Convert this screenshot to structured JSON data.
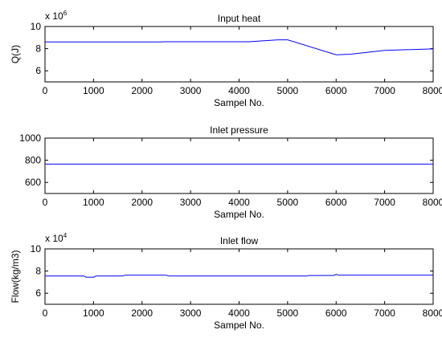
{
  "chart_data": [
    {
      "type": "line",
      "title": "Input heat",
      "xlabel": "Sampel No.",
      "ylabel": "Q(J)",
      "exponent_label": {
        "base": "x 10",
        "exp": "6"
      },
      "xlim": [
        0,
        8000
      ],
      "ylim": [
        5,
        10
      ],
      "xticks": [
        0,
        1000,
        2000,
        3000,
        4000,
        5000,
        6000,
        7000,
        8000
      ],
      "yticks": [
        6,
        8,
        10
      ],
      "grid": false,
      "series": [
        {
          "color": "#0000ff",
          "x": [
            0,
            2400,
            2450,
            4200,
            4800,
            5000,
            6000,
            6300,
            7000,
            8000
          ],
          "y": [
            8.6,
            8.6,
            8.62,
            8.62,
            8.8,
            8.8,
            7.45,
            7.5,
            7.85,
            7.98
          ]
        }
      ]
    },
    {
      "type": "line",
      "title": "Inlet pressure",
      "xlabel": "Sampel No.",
      "ylabel": "",
      "xlim": [
        0,
        8000
      ],
      "ylim": [
        500,
        1000
      ],
      "xticks": [
        0,
        1000,
        2000,
        3000,
        4000,
        5000,
        6000,
        7000,
        8000
      ],
      "yticks": [
        600,
        800,
        1000
      ],
      "grid": false,
      "series": [
        {
          "color": "#0000ff",
          "x": [
            0,
            8000
          ],
          "y": [
            765,
            765
          ]
        }
      ]
    },
    {
      "type": "line",
      "title": "Inlet flow",
      "xlabel": "Sampel No.",
      "ylabel": "Flow(kg/m3)",
      "exponent_label": {
        "base": "x 10",
        "exp": "4"
      },
      "xlim": [
        0,
        8000
      ],
      "ylim": [
        5,
        10
      ],
      "xticks": [
        0,
        1000,
        2000,
        3000,
        4000,
        5000,
        6000,
        7000,
        8000
      ],
      "yticks": [
        6,
        8,
        10
      ],
      "grid": false,
      "series": [
        {
          "color": "#0000ff",
          "x": [
            0,
            800,
            850,
            1000,
            1050,
            1600,
            1650,
            2500,
            2550,
            5400,
            5450,
            5950,
            6000,
            6050,
            8000
          ],
          "y": [
            7.55,
            7.55,
            7.45,
            7.45,
            7.55,
            7.55,
            7.62,
            7.62,
            7.55,
            7.55,
            7.6,
            7.6,
            7.7,
            7.62,
            7.62
          ]
        }
      ]
    }
  ]
}
